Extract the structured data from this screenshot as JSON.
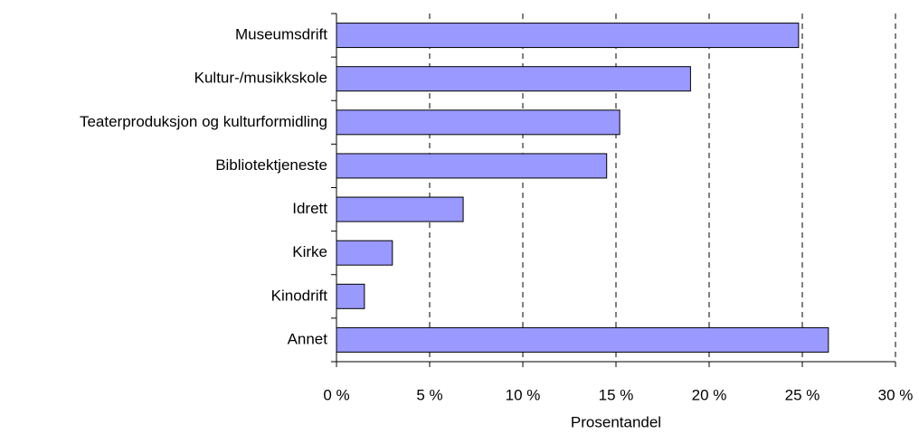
{
  "chart_data": {
    "type": "bar",
    "orientation": "horizontal",
    "categories": [
      "Museumsdrift",
      "Kultur-/musikkskole",
      "Teaterproduksjon og kulturformidling",
      "Bibliotektjeneste",
      "Idrett",
      "Kirke",
      "Kinodrift",
      "Annet"
    ],
    "values": [
      24.8,
      19.0,
      15.2,
      14.5,
      6.8,
      3.0,
      1.5,
      26.4
    ],
    "color": "#9999ff",
    "xlim": [
      0,
      30
    ],
    "xticks": [
      {
        "value": 0,
        "label": "0 %"
      },
      {
        "value": 5,
        "label": "5 %"
      },
      {
        "value": 10,
        "label": "10 %"
      },
      {
        "value": 15,
        "label": "15 %"
      },
      {
        "value": 20,
        "label": "20 %"
      },
      {
        "value": 25,
        "label": "25 %"
      },
      {
        "value": 30,
        "label": "30 %"
      }
    ],
    "xlabel": "Prosentandel",
    "grid": true
  }
}
